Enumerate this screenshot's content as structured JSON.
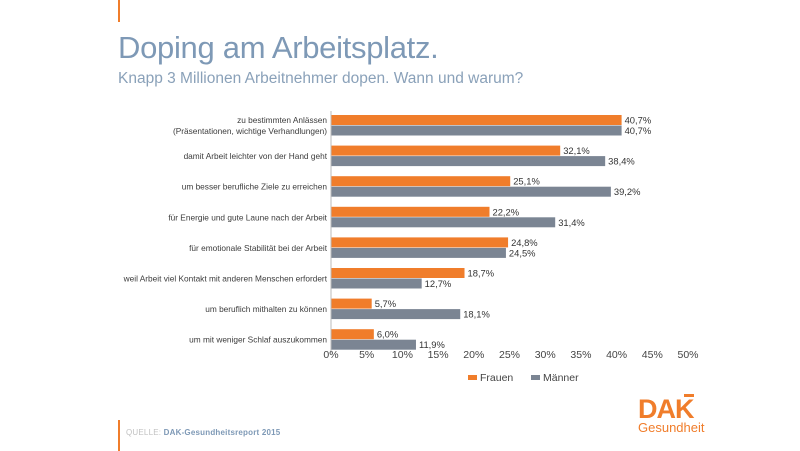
{
  "header": {
    "title": "Doping am Arbeitsplatz.",
    "subtitle": "Knapp 3 Millionen Arbeitnehmer dopen. Wann und warum?"
  },
  "footer": {
    "source_prefix": "QUELLE:",
    "source_value": "DAK-Gesundheitsreport 2015"
  },
  "logo": {
    "main": "DAK",
    "sub": "Gesundheit"
  },
  "colors": {
    "accent": "#f07d2b",
    "frauen": "#f07d2b",
    "maenner": "#7b8593",
    "title": "#7e99b6"
  },
  "chart_data": {
    "type": "bar",
    "orientation": "horizontal",
    "categories": [
      [
        "zu bestimmten  Anlässen",
        "(Präsentationen, wichtige Verhandlungen)"
      ],
      [
        "damit Arbeit leichter von der Hand geht"
      ],
      [
        "um besser berufliche Ziele zu erreichen"
      ],
      [
        "für Energie und gute Laune nach der Arbeit"
      ],
      [
        "für emotionale Stabilität bei der Arbeit"
      ],
      [
        "weil Arbeit viel Kontakt mit anderen Menschen erfordert"
      ],
      [
        "um beruflich mithalten zu können"
      ],
      [
        "um mit weniger Schlaf auszukommen"
      ]
    ],
    "series": [
      {
        "name": "Frauen",
        "color": "#f07d2b",
        "values": [
          40.7,
          32.1,
          25.1,
          22.2,
          24.8,
          18.7,
          5.7,
          6.0
        ],
        "labels": [
          "40,7%",
          "32,1%",
          "25,1%",
          "22,2%",
          "24,8%",
          "18,7%",
          "5,7%",
          "6,0%"
        ]
      },
      {
        "name": "Männer",
        "color": "#7b8593",
        "values": [
          40.7,
          38.4,
          39.2,
          31.4,
          24.5,
          12.7,
          18.1,
          11.9
        ],
        "labels": [
          "40,7%",
          "38,4%",
          "39,2%",
          "31,4%",
          "24,5%",
          "12,7%",
          "18,1%",
          "11,9%"
        ]
      }
    ],
    "xlim": [
      0,
      50
    ],
    "ticks": [
      "0%",
      "5%",
      "10%",
      "15%",
      "20%",
      "25%",
      "30%",
      "35%",
      "40%",
      "45%",
      "50%"
    ],
    "grid": false,
    "legend_position": "bottom"
  }
}
